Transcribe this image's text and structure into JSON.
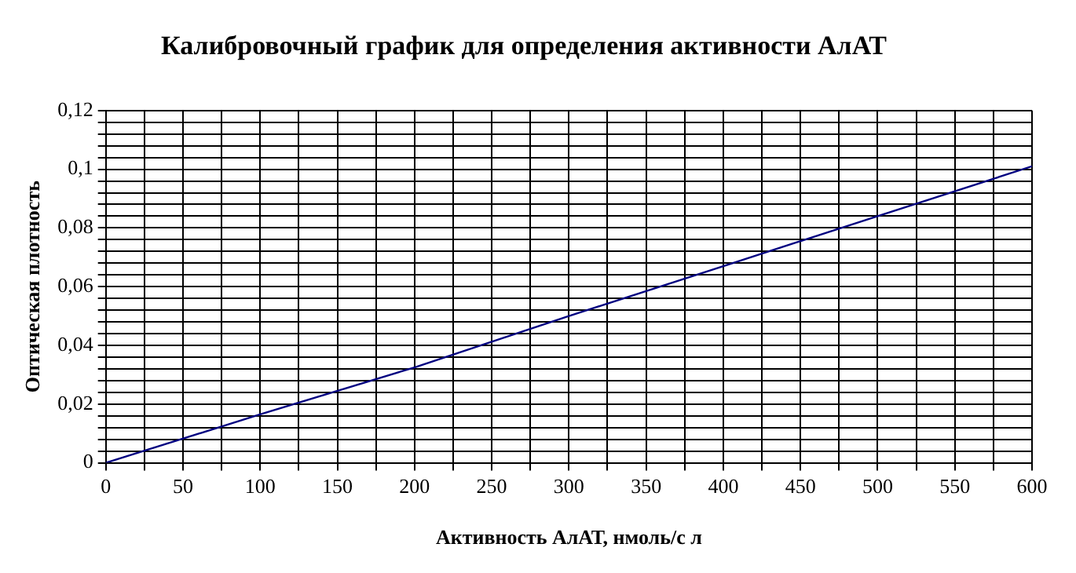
{
  "chart_data": {
    "type": "line",
    "title": "Калибровочный график для определения активности АлАТ",
    "xlabel": "Активность АлАТ, нмоль/с л",
    "ylabel": "Оптическая плотность",
    "x": [
      0,
      100,
      200,
      300,
      400,
      500,
      600
    ],
    "series": [
      {
        "color": "#000080",
        "values": [
          0,
          0.0165,
          0.0325,
          0.05,
          0.067,
          0.084,
          0.101
        ]
      }
    ],
    "xlim": [
      0,
      600
    ],
    "xticks": [
      0,
      {
        "value": 25,
        "label": null
      },
      50,
      {
        "value": 75,
        "label": null
      },
      100,
      {
        "value": 125,
        "label": null
      },
      150,
      {
        "value": 175,
        "label": null
      },
      200,
      {
        "value": 225,
        "label": null
      },
      250,
      {
        "value": 275,
        "label": null
      },
      300,
      {
        "value": 325,
        "label": null
      },
      350,
      {
        "value": 375,
        "label": null
      },
      400,
      {
        "value": 425,
        "label": null
      },
      450,
      {
        "value": 475,
        "label": null
      },
      500,
      {
        "value": 525,
        "label": null
      },
      550,
      {
        "value": 575,
        "label": null
      },
      600
    ],
    "ylim": [
      0,
      0.12
    ],
    "yticks": [
      0,
      {
        "value": 0.004,
        "label": null
      },
      {
        "value": 0.008,
        "label": null
      },
      {
        "value": 0.012,
        "label": null
      },
      {
        "value": 0.016,
        "label": null
      },
      {
        "value": 0.02,
        "label": "0,02"
      },
      {
        "value": 0.024,
        "label": null
      },
      {
        "value": 0.028,
        "label": null
      },
      {
        "value": 0.032,
        "label": null
      },
      {
        "value": 0.036,
        "label": null
      },
      {
        "value": 0.04,
        "label": "0,04"
      },
      {
        "value": 0.044,
        "label": null
      },
      {
        "value": 0.048,
        "label": null
      },
      {
        "value": 0.052,
        "label": null
      },
      {
        "value": 0.056,
        "label": null
      },
      {
        "value": 0.06,
        "label": "0,06"
      },
      {
        "value": 0.064,
        "label": null
      },
      {
        "value": 0.068,
        "label": null
      },
      {
        "value": 0.072,
        "label": null
      },
      {
        "value": 0.076,
        "label": null
      },
      {
        "value": 0.08,
        "label": "0,08"
      },
      {
        "value": 0.084,
        "label": null
      },
      {
        "value": 0.088,
        "label": null
      },
      {
        "value": 0.092,
        "label": null
      },
      {
        "value": 0.096,
        "label": null
      },
      {
        "value": 0.1,
        "label": "0,1"
      },
      {
        "value": 0.104,
        "label": null
      },
      {
        "value": 0.108,
        "label": null
      },
      {
        "value": 0.112,
        "label": null
      },
      {
        "value": 0.116,
        "label": null
      },
      {
        "value": 0.12,
        "label": "0,12"
      }
    ],
    "grid": true,
    "legend": false,
    "marker": "none",
    "line_style": "solid"
  }
}
